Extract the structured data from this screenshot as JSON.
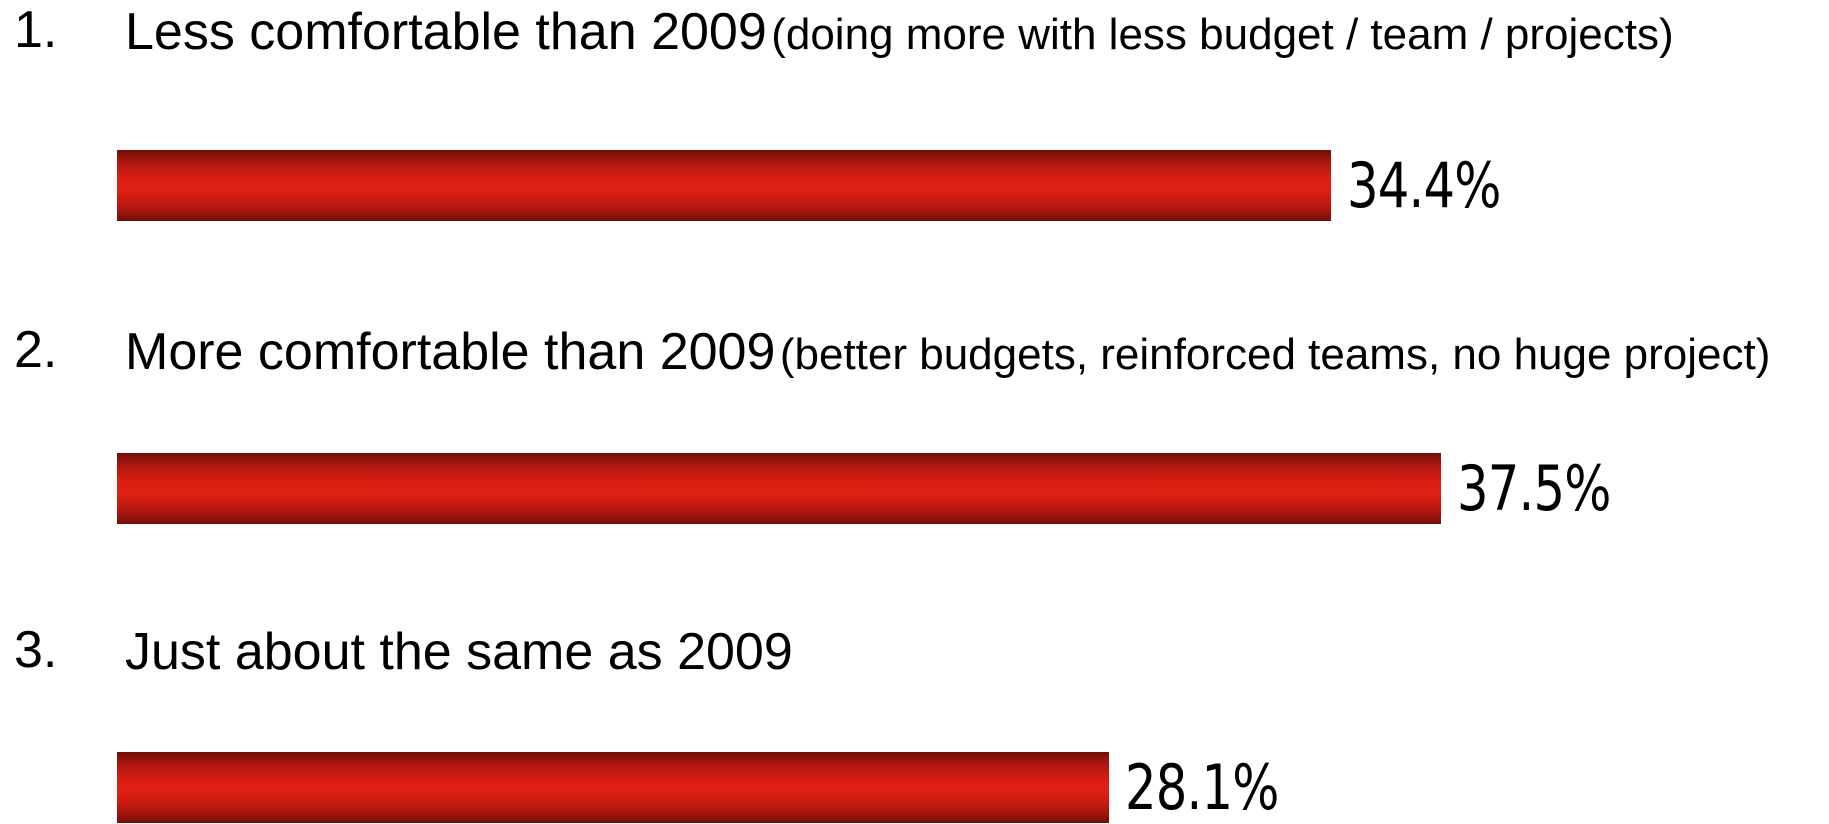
{
  "chart_data": {
    "type": "bar",
    "orientation": "horizontal",
    "categories": [
      "Less comfortable than 2009 (doing more with less budget / team / projects)",
      "More comfortable than 2009 (better budgets, reinforced teams, no huge project)",
      "Just about the same as 2009"
    ],
    "values": [
      34.4,
      37.5,
      28.1
    ],
    "unit": "%",
    "bar_color": "#dc1f12",
    "items": [
      {
        "number": "1.",
        "label": "Less comfortable than 2009",
        "detail": "(doing more with less budget / team / projects)",
        "value": 34.4,
        "value_label": "34.4%"
      },
      {
        "number": "2.",
        "label": "More comfortable than 2009",
        "detail": "(better budgets, reinforced teams, no huge project)",
        "value": 37.5,
        "value_label": "37.5%"
      },
      {
        "number": "3.",
        "label": "Just about the same as 2009",
        "detail": "",
        "value": 28.1,
        "value_label": "28.1%"
      }
    ]
  }
}
